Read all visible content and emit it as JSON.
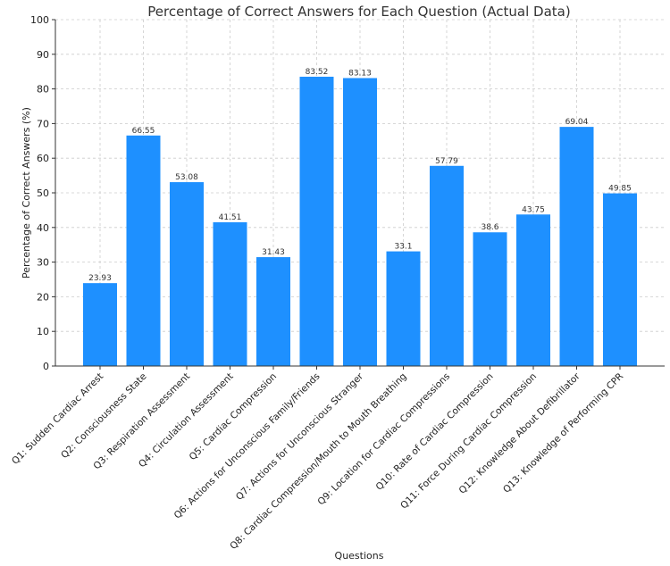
{
  "chart_data": {
    "type": "bar",
    "title": "Percentage of Correct Answers for Each Question (Actual Data)",
    "xlabel": "Questions",
    "ylabel": "Percentage of Correct Answers (%)",
    "ylim": [
      0,
      100
    ],
    "yticks": [
      0,
      10,
      20,
      30,
      40,
      50,
      60,
      70,
      80,
      90,
      100
    ],
    "grid": true,
    "bar_color": "#1E90FF",
    "categories": [
      "Q1: Sudden Cardiac Arrest",
      "Q2: Consciousness State",
      "Q3: Respiration Assessment",
      "Q4: Circulation Assessment",
      "Q5: Cardiac Compression",
      "Q6: Actions for Unconscious Family/Friends",
      "Q7: Actions for Unconscious Stranger",
      "Q8: Cardiac Compression/Mouth to Mouth Breathing",
      "Q9: Location for Cardiac Compressions",
      "Q10: Rate of Cardiac Compression",
      "Q11: Force During Cardiac Compression",
      "Q12: Knowledge About Defibrillator",
      "Q13: Knowledge of Performing CPR"
    ],
    "values": [
      23.93,
      66.55,
      53.08,
      41.51,
      31.43,
      83.52,
      83.13,
      33.1,
      57.79,
      38.6,
      43.75,
      69.04,
      49.85
    ]
  }
}
